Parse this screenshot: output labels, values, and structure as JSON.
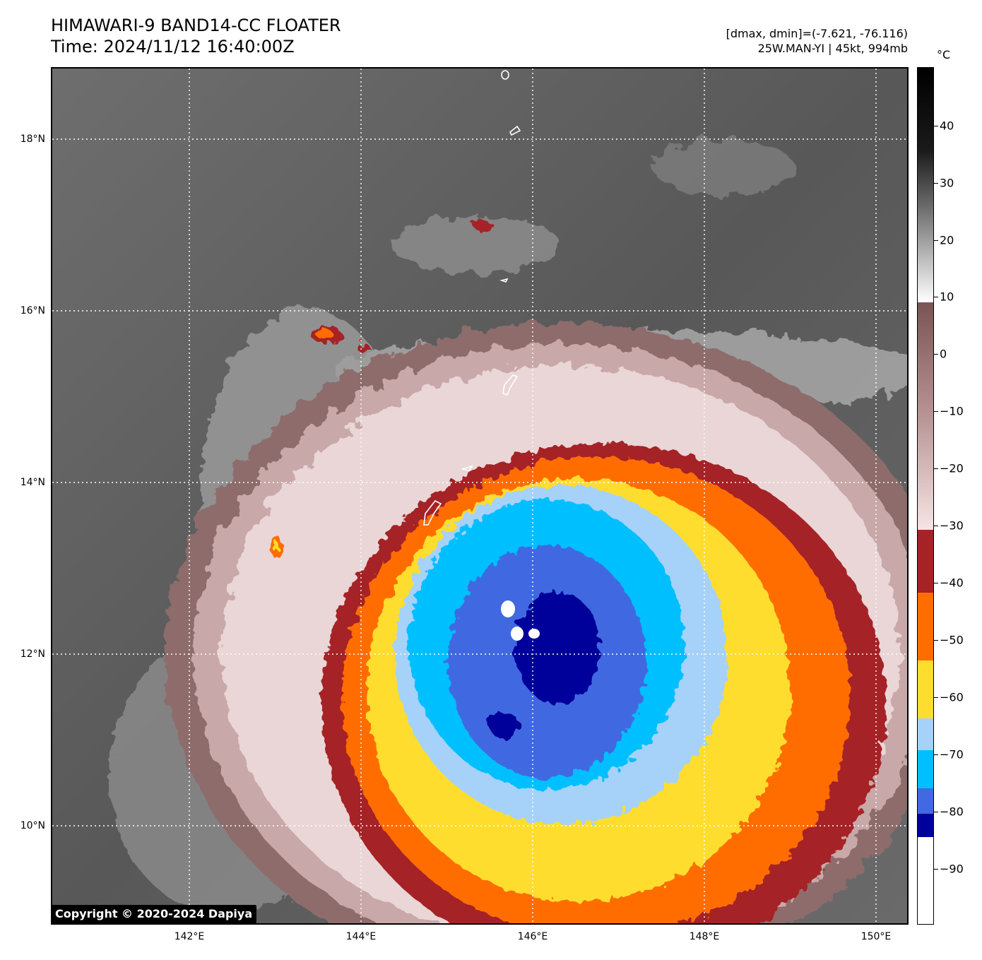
{
  "title": {
    "line1": "HIMAWARI-9 BAND14-CC FLOATER",
    "line2": "Time: 2024/11/12 16:40:00Z"
  },
  "info": {
    "range": "[dmax, dmin]=(-7.621, -76.116)",
    "storm": "25W.MAN-YI | 45kt, 994mb"
  },
  "map": {
    "lat_labels": [
      "18°N",
      "16°N",
      "14°N",
      "12°N",
      "10°N"
    ],
    "lon_labels": [
      "142°E",
      "144°E",
      "146°E",
      "148°E",
      "150°E"
    ],
    "copyright": "Copyright © 2020-2024 Dapiya"
  },
  "colorbar": {
    "unit": "°C",
    "tick_labels": [
      "40",
      "30",
      "20",
      "10",
      "0",
      "−10",
      "−20",
      "−30",
      "−40",
      "−50",
      "−60",
      "−70",
      "−80",
      "−90"
    ],
    "colors": {
      "warm_black": "#000000",
      "gray_mid": "#6e6e6e",
      "white_10": "#ffffff",
      "brown_5": "#8a6262",
      "pink_m30": "#f2d8d8",
      "dark_red": "#a52226",
      "orange": "#ff6d00",
      "yellow": "#ffdd2e",
      "light_blue": "#a6d2fa",
      "cyan": "#00bfff",
      "royal_blue": "#4169e1",
      "navy": "#00009a",
      "white_cold": "#ffffff"
    }
  }
}
